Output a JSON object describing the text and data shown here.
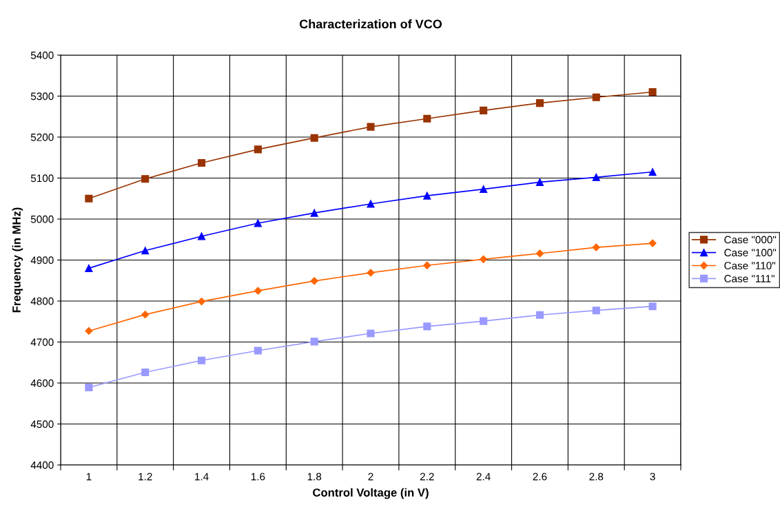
{
  "chart_data": {
    "type": "line",
    "title": "Characterization of VCO",
    "xlabel": "Control Voltage (in V)",
    "ylabel": "Frequency (in MHz)",
    "categories": [
      "1",
      "1.2",
      "1.4",
      "1.6",
      "1.8",
      "2",
      "2.2",
      "2.4",
      "2.6",
      "2.8",
      "3"
    ],
    "series": [
      {
        "name": "Case \"000\"",
        "color": "#993300",
        "marker": "square",
        "values": [
          5050,
          5098,
          5137,
          5170,
          5198,
          5225,
          5245,
          5265,
          5283,
          5297,
          5310
        ]
      },
      {
        "name": "Case \"100\"",
        "color": "#0000ff",
        "marker": "triangle",
        "values": [
          4880,
          4923,
          4958,
          4990,
          5015,
          5037,
          5057,
          5073,
          5090,
          5102,
          5115
        ]
      },
      {
        "name": "Case \"110\"",
        "color": "#ff6600",
        "marker": "diamond",
        "values": [
          4727,
          4767,
          4799,
          4825,
          4849,
          4869,
          4887,
          4902,
          4916,
          4931,
          4941
        ]
      },
      {
        "name": "Case \"111\"",
        "color": "#9999ff",
        "marker": "square",
        "values": [
          4589,
          4626,
          4655,
          4679,
          4701,
          4721,
          4738,
          4751,
          4766,
          4777,
          4787
        ]
      }
    ],
    "ylim": [
      4400,
      5400
    ],
    "yticks": [
      4400,
      4500,
      4600,
      4700,
      4800,
      4900,
      5000,
      5100,
      5200,
      5300,
      5400
    ],
    "grid": true,
    "legend": "right",
    "line_style": "solid"
  }
}
